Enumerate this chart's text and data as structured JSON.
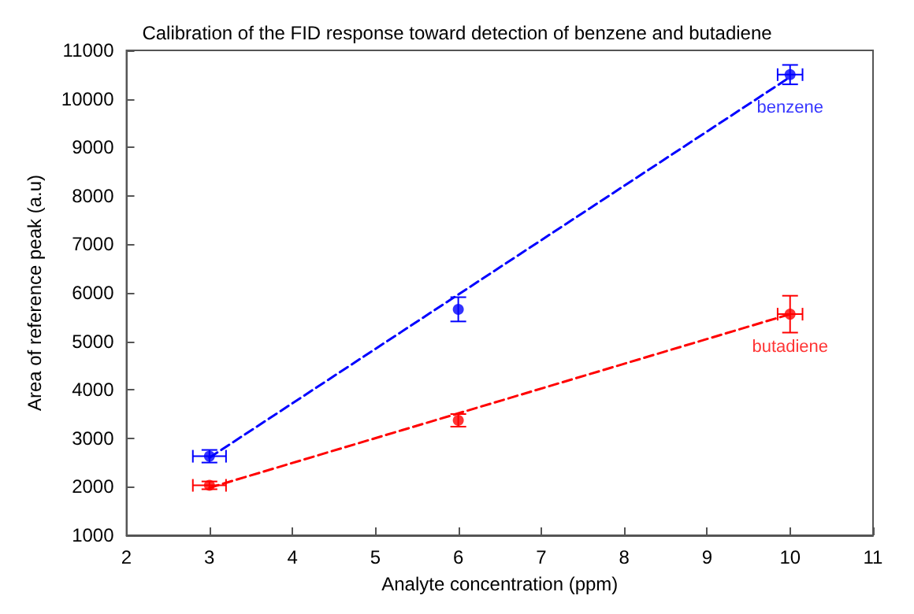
{
  "chart_data": {
    "type": "scatter",
    "title": "Calibration of the FID response toward detection of benzene and butadiene",
    "xlabel": "Analyte concentration (ppm)",
    "ylabel": "Area of reference peak (a.u)",
    "xlim": [
      2,
      11
    ],
    "xticks": [
      2,
      3,
      4,
      5,
      6,
      7,
      8,
      9,
      10,
      11
    ],
    "ylim": [
      1000,
      11000
    ],
    "yticks": [
      1000,
      2000,
      3000,
      4000,
      5000,
      6000,
      7000,
      8000,
      9000,
      10000,
      11000
    ],
    "grid": false,
    "legend": false,
    "marker": "circle",
    "series": [
      {
        "name": "benzene",
        "color": "#0000ff",
        "x": [
          3,
          6,
          10
        ],
        "values": [
          2630,
          5660,
          10500
        ],
        "errors": [
          130,
          250,
          200
        ],
        "xerrors": [
          0.2,
          null,
          0.15
        ]
      },
      {
        "name": "butadiene",
        "color": "#ff0000",
        "x": [
          3,
          6,
          10
        ],
        "values": [
          2030,
          3370,
          5560
        ],
        "errors": [
          80,
          130,
          380
        ],
        "xerrors": [
          0.2,
          null,
          0.15
        ]
      },
      {
        "type": "line",
        "color": "#0000ff",
        "x": [
          3,
          10
        ],
        "values": [
          2600,
          10450
        ],
        "line_style": "dashed",
        "marker": "none"
      },
      {
        "type": "line",
        "color": "#ff0000",
        "x": [
          3,
          10
        ],
        "values": [
          1980,
          5560
        ],
        "line_style": "dashed",
        "marker": "none"
      }
    ]
  }
}
